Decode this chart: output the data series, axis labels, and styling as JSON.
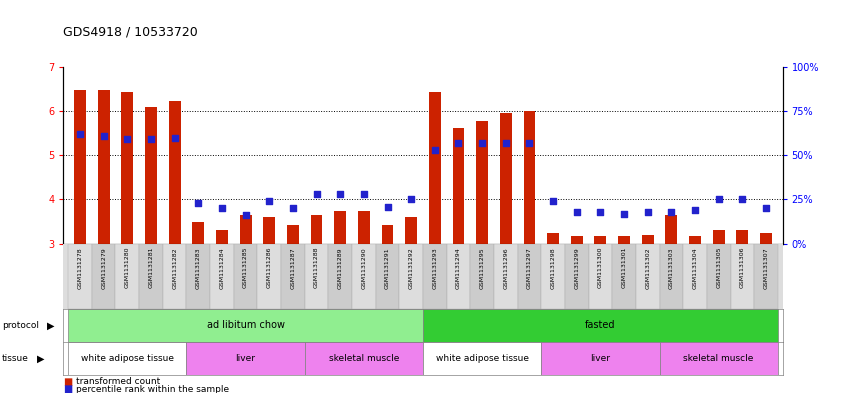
{
  "title": "GDS4918 / 10533720",
  "samples": [
    "GSM1131278",
    "GSM1131279",
    "GSM1131280",
    "GSM1131281",
    "GSM1131282",
    "GSM1131283",
    "GSM1131284",
    "GSM1131285",
    "GSM1131286",
    "GSM1131287",
    "GSM1131288",
    "GSM1131289",
    "GSM1131290",
    "GSM1131291",
    "GSM1131292",
    "GSM1131293",
    "GSM1131294",
    "GSM1131295",
    "GSM1131296",
    "GSM1131297",
    "GSM1131298",
    "GSM1131299",
    "GSM1131300",
    "GSM1131301",
    "GSM1131302",
    "GSM1131303",
    "GSM1131304",
    "GSM1131305",
    "GSM1131306",
    "GSM1131307"
  ],
  "bar_values": [
    6.47,
    6.47,
    6.44,
    6.1,
    6.22,
    3.5,
    3.32,
    3.65,
    3.6,
    3.42,
    3.65,
    3.75,
    3.75,
    3.42,
    3.6,
    6.44,
    5.62,
    5.78,
    5.96,
    6.0,
    3.25,
    3.18,
    3.18,
    3.18,
    3.2,
    3.65,
    3.18,
    3.3,
    3.3,
    3.25
  ],
  "dot_values_pct": [
    62,
    61,
    59,
    59,
    60,
    23,
    20,
    16,
    24,
    20,
    28,
    28,
    28,
    21,
    25,
    53,
    57,
    57,
    57,
    57,
    24,
    18,
    18,
    17,
    18,
    18,
    19,
    25,
    25,
    20
  ],
  "ylim": [
    3.0,
    7.0
  ],
  "yticks_left": [
    3,
    4,
    5,
    6,
    7
  ],
  "yticks_right": [
    0,
    25,
    50,
    75,
    100
  ],
  "bar_color": "#cc2200",
  "dot_color": "#2222cc",
  "bg_color": "#ffffff",
  "protocol_labels": [
    {
      "label": "ad libitum chow",
      "start": 0,
      "end": 14,
      "color": "#90ee90"
    },
    {
      "label": "fasted",
      "start": 15,
      "end": 29,
      "color": "#33cc33"
    }
  ],
  "tissue_labels": [
    {
      "label": "white adipose tissue",
      "start": 0,
      "end": 4,
      "color": "#ffffff"
    },
    {
      "label": "liver",
      "start": 5,
      "end": 9,
      "color": "#ee82ee"
    },
    {
      "label": "skeletal muscle",
      "start": 10,
      "end": 14,
      "color": "#ee82ee"
    },
    {
      "label": "white adipose tissue",
      "start": 15,
      "end": 19,
      "color": "#ffffff"
    },
    {
      "label": "liver",
      "start": 20,
      "end": 24,
      "color": "#ee82ee"
    },
    {
      "label": "skeletal muscle",
      "start": 25,
      "end": 29,
      "color": "#ee82ee"
    }
  ]
}
